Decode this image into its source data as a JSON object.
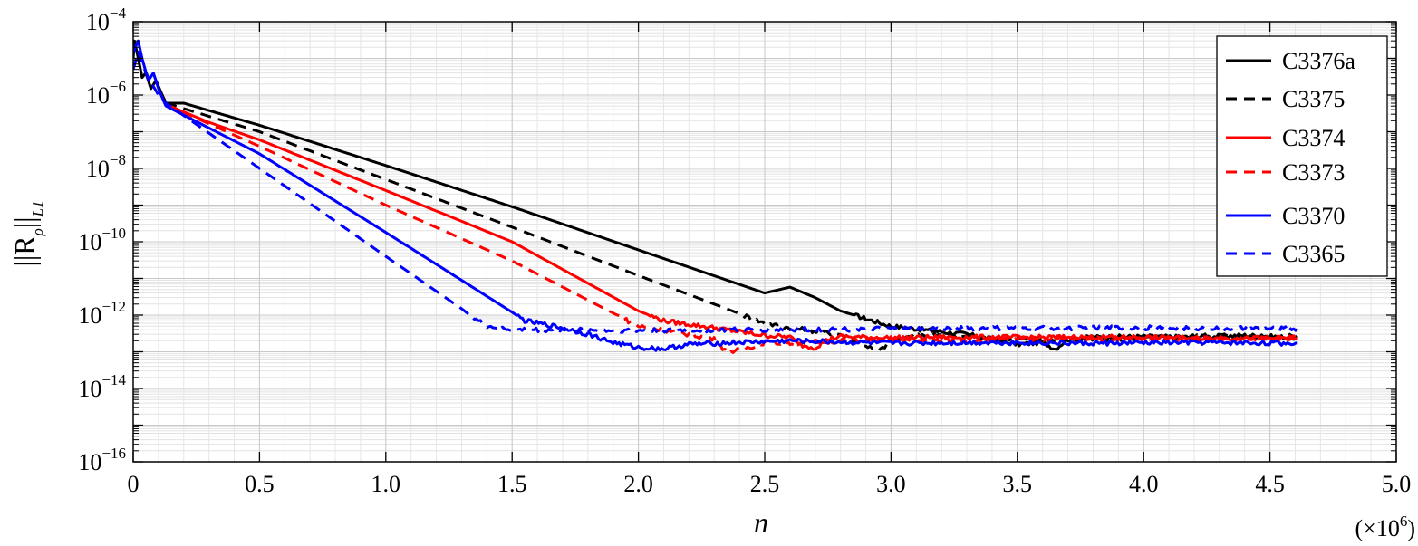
{
  "chart_data": {
    "type": "line",
    "xlabel": "n",
    "ylabel_parts": {
      "base": "||R",
      "sub_rho": "ρ",
      "mid": "||",
      "sub_l1": "L1"
    },
    "x_multiplier": {
      "prefix": "(×10",
      "exp": "6",
      "suffix": ")"
    },
    "x_scale_note": "×10^6",
    "xlim": [
      0,
      5.0
    ],
    "ylim": [
      1e-16,
      0.0001
    ],
    "yscale": "log",
    "grid": true,
    "minor_grid": true,
    "legend_position": "top-right",
    "x_ticks": [
      {
        "value": 0,
        "label": "0"
      },
      {
        "value": 0.5,
        "label": "0.5"
      },
      {
        "value": 1.0,
        "label": "1.0"
      },
      {
        "value": 1.5,
        "label": "1.5"
      },
      {
        "value": 2.0,
        "label": "2.0"
      },
      {
        "value": 2.5,
        "label": "2.5"
      },
      {
        "value": 3.0,
        "label": "3.0"
      },
      {
        "value": 3.5,
        "label": "3.5"
      },
      {
        "value": 4.0,
        "label": "4.0"
      },
      {
        "value": 4.5,
        "label": "4.5"
      },
      {
        "value": 5.0,
        "label": "5.0"
      }
    ],
    "y_ticks": [
      {
        "exp": -4,
        "base": "10",
        "sup": "−4"
      },
      {
        "exp": -6,
        "base": "10",
        "sup": "−6"
      },
      {
        "exp": -8,
        "base": "10",
        "sup": "−8"
      },
      {
        "exp": -10,
        "base": "10",
        "sup": "−10"
      },
      {
        "exp": -12,
        "base": "10",
        "sup": "−12"
      },
      {
        "exp": -14,
        "base": "10",
        "sup": "−14"
      },
      {
        "exp": -16,
        "base": "10",
        "sup": "−16"
      }
    ],
    "series": [
      {
        "name": "C3376a",
        "color": "#000000",
        "dash": "solid",
        "points": [
          [
            0,
            1e-05
          ],
          [
            0.005,
            3e-05
          ],
          [
            0.02,
            1e-05
          ],
          [
            0.035,
            3e-06
          ],
          [
            0.05,
            4e-06
          ],
          [
            0.07,
            1.5e-06
          ],
          [
            0.09,
            2.5e-06
          ],
          [
            0.11,
            1.2e-06
          ],
          [
            0.13,
            6e-07
          ],
          [
            0.2,
            6e-07
          ],
          [
            0.5,
            1.5e-07
          ],
          [
            1.0,
            1.2e-08
          ],
          [
            1.5,
            9e-10
          ],
          [
            2.0,
            6e-11
          ],
          [
            2.5,
            4e-12
          ],
          [
            2.6,
            5.8e-12
          ],
          [
            2.7,
            3e-12
          ],
          [
            2.8,
            1.3e-12
          ],
          [
            2.9,
            8e-13
          ],
          [
            3.0,
            5e-13
          ],
          [
            3.1,
            4.2e-13
          ],
          [
            3.2,
            3.5e-13
          ],
          [
            3.3,
            3e-13
          ],
          [
            3.4,
            2.2e-13
          ],
          [
            3.5,
            1.6e-13
          ],
          [
            3.6,
            1.8e-13
          ],
          [
            3.65,
            1.2e-13
          ],
          [
            3.7,
            2.2e-13
          ],
          [
            3.8,
            2.5e-13
          ],
          [
            4.0,
            2.6e-13
          ],
          [
            4.2,
            2.5e-13
          ],
          [
            4.4,
            2.8e-13
          ],
          [
            4.61,
            2.4e-13
          ]
        ]
      },
      {
        "name": "C3375",
        "color": "#000000",
        "dash": "dashed",
        "points": [
          [
            0.13,
            6e-07
          ],
          [
            0.5,
            1e-07
          ],
          [
            1.0,
            5e-09
          ],
          [
            1.5,
            2.5e-10
          ],
          [
            2.0,
            1.2e-11
          ],
          [
            2.3,
            2e-12
          ],
          [
            2.5,
            6e-13
          ],
          [
            2.6,
            4.5e-13
          ],
          [
            2.8,
            3e-13
          ],
          [
            2.9,
            1.5e-13
          ],
          [
            2.95,
            1e-13
          ],
          [
            3.0,
            2e-13
          ],
          [
            3.1,
            3e-13
          ],
          [
            3.3,
            2.6e-13
          ],
          [
            3.5,
            2.2e-13
          ],
          [
            3.7,
            2e-13
          ],
          [
            4.0,
            2.4e-13
          ],
          [
            4.3,
            2.8e-13
          ],
          [
            4.61,
            2.6e-13
          ]
        ]
      },
      {
        "name": "C3374",
        "color": "#ff0000",
        "dash": "solid",
        "points": [
          [
            0.13,
            5.5e-07
          ],
          [
            0.3,
            1.8e-07
          ],
          [
            0.5,
            6e-08
          ],
          [
            1.0,
            2.5e-09
          ],
          [
            1.5,
            1e-10
          ],
          [
            2.0,
            1.3e-12
          ],
          [
            2.1,
            7e-13
          ],
          [
            2.3,
            4.5e-13
          ],
          [
            2.4,
            3.5e-13
          ],
          [
            2.5,
            2.8e-13
          ],
          [
            2.6,
            2.5e-13
          ],
          [
            2.65,
            1.5e-13
          ],
          [
            2.7,
            1.3e-13
          ],
          [
            2.75,
            2.2e-13
          ],
          [
            2.8,
            2.6e-13
          ],
          [
            3.0,
            2.4e-13
          ],
          [
            3.2,
            2.5e-13
          ],
          [
            3.5,
            2.5e-13
          ],
          [
            4.0,
            2.5e-13
          ],
          [
            4.3,
            2.3e-13
          ],
          [
            4.61,
            2.4e-13
          ]
        ]
      },
      {
        "name": "C3373",
        "color": "#ff0000",
        "dash": "dashed",
        "points": [
          [
            0.13,
            5.5e-07
          ],
          [
            0.5,
            4e-08
          ],
          [
            1.0,
            1e-09
          ],
          [
            1.5,
            3e-11
          ],
          [
            2.0,
            5e-13
          ],
          [
            2.2,
            3e-13
          ],
          [
            2.3,
            2.2e-13
          ],
          [
            2.35,
            1e-13
          ],
          [
            2.4,
            1.1e-13
          ],
          [
            2.5,
            1.8e-13
          ],
          [
            2.6,
            1.7e-13
          ],
          [
            2.8,
            2e-13
          ],
          [
            3.0,
            2.1e-13
          ],
          [
            3.2,
            2e-13
          ],
          [
            3.5,
            2.2e-13
          ],
          [
            4.0,
            2.3e-13
          ],
          [
            4.61,
            2.4e-13
          ]
        ]
      },
      {
        "name": "C3370",
        "color": "#0000ff",
        "dash": "solid",
        "points": [
          [
            0,
            1.5e-05
          ],
          [
            0.02,
            3e-05
          ],
          [
            0.035,
            1e-05
          ],
          [
            0.06,
            2.5e-06
          ],
          [
            0.08,
            4e-06
          ],
          [
            0.1,
            1.5e-06
          ],
          [
            0.12,
            7e-07
          ],
          [
            0.13,
            5e-07
          ],
          [
            0.5,
            2.5e-08
          ],
          [
            1.0,
            1.8e-10
          ],
          [
            1.5,
            1.2e-12
          ],
          [
            1.55,
            7e-13
          ],
          [
            1.7,
            4.5e-13
          ],
          [
            1.8,
            3e-13
          ],
          [
            1.9,
            1.8e-13
          ],
          [
            2.0,
            1.3e-13
          ],
          [
            2.1,
            1.2e-13
          ],
          [
            2.2,
            1.6e-13
          ],
          [
            2.4,
            1.8e-13
          ],
          [
            2.6,
            2e-13
          ],
          [
            3.0,
            1.7e-13
          ],
          [
            3.4,
            1.8e-13
          ],
          [
            3.8,
            1.7e-13
          ],
          [
            4.2,
            1.8e-13
          ],
          [
            4.61,
            1.7e-13
          ]
        ]
      },
      {
        "name": "C3365",
        "color": "#0000ff",
        "dash": "dashed",
        "points": [
          [
            0,
            5e-06
          ],
          [
            0.02,
            1.5e-05
          ],
          [
            0.04,
            6e-06
          ],
          [
            0.06,
            3e-06
          ],
          [
            0.1,
            1e-06
          ],
          [
            0.13,
            6e-07
          ],
          [
            0.5,
            1e-08
          ],
          [
            1.0,
            4e-11
          ],
          [
            1.3,
            1.5e-12
          ],
          [
            1.35,
            8e-13
          ],
          [
            1.4,
            5e-13
          ],
          [
            1.5,
            4e-13
          ],
          [
            2.0,
            3.8e-13
          ],
          [
            2.5,
            4e-13
          ],
          [
            3.0,
            4.2e-13
          ],
          [
            3.5,
            4.4e-13
          ],
          [
            4.0,
            4.5e-13
          ],
          [
            4.61,
            4.2e-13
          ]
        ]
      }
    ]
  }
}
